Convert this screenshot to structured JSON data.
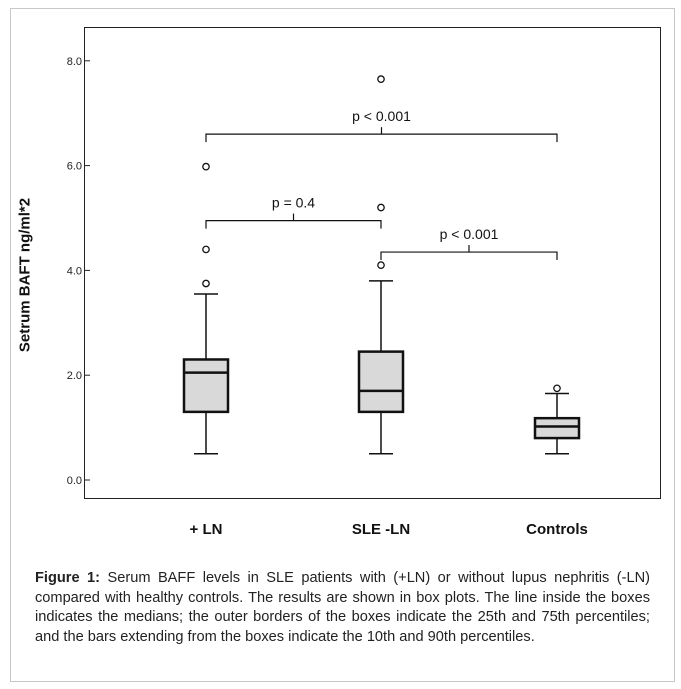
{
  "chart_data": {
    "type": "box",
    "ylabel": "Setrum BAFT ng/ml*2",
    "ylim": [
      0,
      8.4
    ],
    "yticks": [
      "0.0",
      "2.0",
      "4.0",
      "6.0",
      "8.0"
    ],
    "categories": [
      "+ LN",
      "SLE -LN",
      "Controls"
    ],
    "boxes": [
      {
        "category": "+ LN",
        "whisker_low": 0.5,
        "q1": 1.3,
        "median": 2.05,
        "q3": 2.3,
        "whisker_high": 3.55,
        "outliers": [
          3.75,
          4.4,
          5.98
        ]
      },
      {
        "category": "SLE -LN",
        "whisker_low": 0.5,
        "q1": 1.3,
        "median": 1.7,
        "q3": 2.45,
        "whisker_high": 3.8,
        "outliers": [
          4.1,
          5.2,
          7.65
        ]
      },
      {
        "category": "Controls",
        "whisker_low": 0.5,
        "q1": 0.8,
        "median": 1.02,
        "q3": 1.18,
        "whisker_high": 1.65,
        "outliers": [
          1.75
        ]
      }
    ],
    "comparisons": [
      {
        "from": "+ LN",
        "to": "Controls",
        "label": "p < 0.001",
        "y": 6.6
      },
      {
        "from": "+ LN",
        "to": "SLE -LN",
        "label": "p = 0.4",
        "y": 4.95
      },
      {
        "from": "SLE -LN",
        "to": "Controls",
        "label": "p < 0.001",
        "y": 4.35
      }
    ]
  },
  "caption": {
    "label": "Figure 1:",
    "text": "Serum BAFF levels in SLE patients with (+LN) or without lupus nephritis (-LN) compared with healthy controls. The results are shown in box plots. The line inside the boxes indicates the medians; the outer borders of the boxes indicate the 25th and 75th percentiles; and the bars extending from the boxes indicate the 10th and 90th percentiles."
  }
}
